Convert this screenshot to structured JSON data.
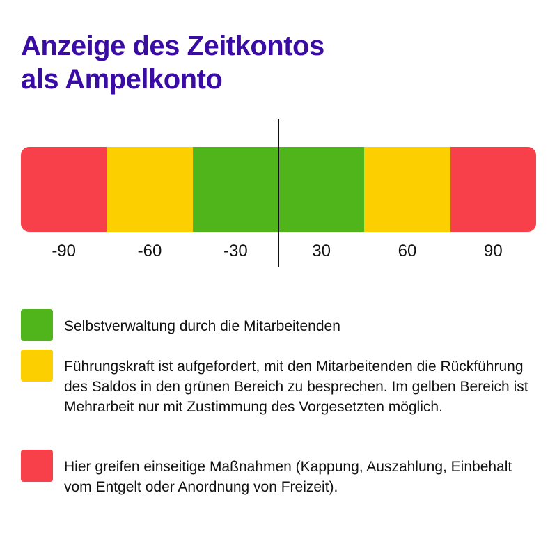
{
  "title": {
    "line1": "Anzeige des Zeitkontos",
    "line2": "als Ampelkonto"
  },
  "colors": {
    "title": "#3a0ca3",
    "red": "#f7404a",
    "yellow": "#fcd000",
    "green": "#4fb51b",
    "line": "#111111"
  },
  "bar": {
    "segments": [
      {
        "color": "red"
      },
      {
        "color": "yellow"
      },
      {
        "color": "green"
      },
      {
        "color": "green"
      },
      {
        "color": "yellow"
      },
      {
        "color": "red"
      }
    ],
    "tick_labels": [
      "-90",
      "-60",
      "-30",
      "30",
      "60",
      "90"
    ]
  },
  "legend": [
    {
      "color": "green",
      "text": "Selbstverwaltung durch die Mitarbeitenden"
    },
    {
      "color": "yellow",
      "text": "Führungskraft ist aufgefordert, mit den Mitarbeitenden die Rückführung des Saldos in den grünen Bereich zu besprechen. Im gelben Bereich ist Mehrarbeit nur mit Zustimmung des Vorgesetzten möglich."
    },
    {
      "color": "red",
      "text": "Hier greifen einseitige Maßnahmen (Kappung, Auszahlung, Einbehalt vom Entgelt oder Anordnung von Freizeit)."
    }
  ]
}
